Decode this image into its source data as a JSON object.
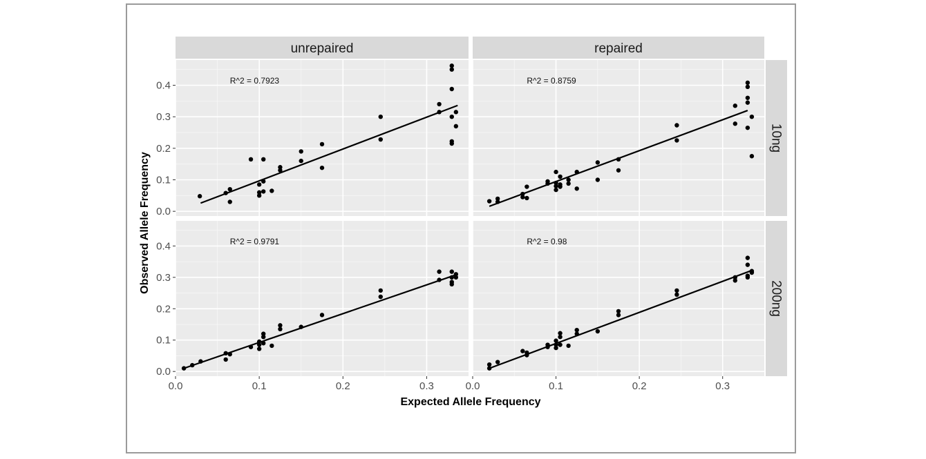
{
  "chart_data": {
    "type": "scatter",
    "xlabel": "Expected Allele Frequency",
    "ylabel": "Observed Allele Frequency",
    "xlim": [
      0.0,
      0.35
    ],
    "ylim": [
      -0.015,
      0.48
    ],
    "x_ticks": [
      "0.0",
      "0.1",
      "0.2",
      "0.3"
    ],
    "y_ticks": [
      "0.0",
      "0.1",
      "0.2",
      "0.3",
      "0.4"
    ],
    "column_labels": [
      "unrepaired",
      "repaired"
    ],
    "row_labels": [
      "10ng",
      "200ng"
    ],
    "grid": true,
    "panels": [
      {
        "column": "unrepaired",
        "row": "10ng",
        "annotation": "R^2 =  0.7923",
        "trend_line": [
          [
            0.03,
            0.026
          ],
          [
            0.337,
            0.336
          ]
        ],
        "points": [
          [
            0.029,
            0.048
          ],
          [
            0.06,
            0.058
          ],
          [
            0.065,
            0.07
          ],
          [
            0.065,
            0.03
          ],
          [
            0.09,
            0.165
          ],
          [
            0.1,
            0.085
          ],
          [
            0.1,
            0.06
          ],
          [
            0.1,
            0.05
          ],
          [
            0.105,
            0.095
          ],
          [
            0.105,
            0.063
          ],
          [
            0.105,
            0.165
          ],
          [
            0.115,
            0.065
          ],
          [
            0.125,
            0.14
          ],
          [
            0.125,
            0.13
          ],
          [
            0.15,
            0.19
          ],
          [
            0.15,
            0.16
          ],
          [
            0.175,
            0.213
          ],
          [
            0.175,
            0.138
          ],
          [
            0.245,
            0.3
          ],
          [
            0.245,
            0.228
          ],
          [
            0.315,
            0.34
          ],
          [
            0.315,
            0.315
          ],
          [
            0.33,
            0.462
          ],
          [
            0.33,
            0.45
          ],
          [
            0.33,
            0.388
          ],
          [
            0.33,
            0.3
          ],
          [
            0.33,
            0.222
          ],
          [
            0.33,
            0.215
          ],
          [
            0.335,
            0.315
          ],
          [
            0.335,
            0.27
          ]
        ]
      },
      {
        "column": "repaired",
        "row": "10ng",
        "annotation": "R^2 =  0.8759",
        "trend_line": [
          [
            0.02,
            0.016
          ],
          [
            0.33,
            0.32
          ]
        ],
        "points": [
          [
            0.02,
            0.032
          ],
          [
            0.03,
            0.04
          ],
          [
            0.03,
            0.03
          ],
          [
            0.06,
            0.055
          ],
          [
            0.06,
            0.045
          ],
          [
            0.065,
            0.078
          ],
          [
            0.065,
            0.042
          ],
          [
            0.09,
            0.095
          ],
          [
            0.09,
            0.088
          ],
          [
            0.1,
            0.125
          ],
          [
            0.1,
            0.09
          ],
          [
            0.1,
            0.08
          ],
          [
            0.1,
            0.068
          ],
          [
            0.105,
            0.11
          ],
          [
            0.105,
            0.085
          ],
          [
            0.105,
            0.078
          ],
          [
            0.115,
            0.1
          ],
          [
            0.115,
            0.088
          ],
          [
            0.125,
            0.125
          ],
          [
            0.125,
            0.072
          ],
          [
            0.15,
            0.155
          ],
          [
            0.15,
            0.1
          ],
          [
            0.175,
            0.165
          ],
          [
            0.175,
            0.13
          ],
          [
            0.245,
            0.273
          ],
          [
            0.245,
            0.225
          ],
          [
            0.315,
            0.335
          ],
          [
            0.315,
            0.278
          ],
          [
            0.33,
            0.408
          ],
          [
            0.33,
            0.395
          ],
          [
            0.33,
            0.36
          ],
          [
            0.33,
            0.345
          ],
          [
            0.33,
            0.265
          ],
          [
            0.335,
            0.3
          ],
          [
            0.335,
            0.175
          ]
        ]
      },
      {
        "column": "unrepaired",
        "row": "200ng",
        "annotation": "R^2 =  0.9791",
        "trend_line": [
          [
            0.01,
            0.01
          ],
          [
            0.337,
            0.31
          ]
        ],
        "points": [
          [
            0.01,
            0.01
          ],
          [
            0.02,
            0.02
          ],
          [
            0.03,
            0.032
          ],
          [
            0.06,
            0.058
          ],
          [
            0.06,
            0.038
          ],
          [
            0.065,
            0.055
          ],
          [
            0.09,
            0.078
          ],
          [
            0.1,
            0.095
          ],
          [
            0.1,
            0.085
          ],
          [
            0.1,
            0.072
          ],
          [
            0.105,
            0.12
          ],
          [
            0.105,
            0.11
          ],
          [
            0.105,
            0.09
          ],
          [
            0.115,
            0.082
          ],
          [
            0.125,
            0.147
          ],
          [
            0.125,
            0.135
          ],
          [
            0.15,
            0.142
          ],
          [
            0.175,
            0.18
          ],
          [
            0.245,
            0.258
          ],
          [
            0.245,
            0.238
          ],
          [
            0.315,
            0.318
          ],
          [
            0.315,
            0.292
          ],
          [
            0.33,
            0.318
          ],
          [
            0.33,
            0.3
          ],
          [
            0.33,
            0.285
          ],
          [
            0.33,
            0.278
          ],
          [
            0.335,
            0.31
          ],
          [
            0.335,
            0.3
          ]
        ]
      },
      {
        "column": "repaired",
        "row": "200ng",
        "annotation": "R^2 =  0.98",
        "trend_line": [
          [
            0.02,
            0.01
          ],
          [
            0.335,
            0.322
          ]
        ],
        "points": [
          [
            0.02,
            0.022
          ],
          [
            0.02,
            0.01
          ],
          [
            0.03,
            0.03
          ],
          [
            0.06,
            0.065
          ],
          [
            0.065,
            0.06
          ],
          [
            0.065,
            0.052
          ],
          [
            0.09,
            0.085
          ],
          [
            0.09,
            0.078
          ],
          [
            0.1,
            0.098
          ],
          [
            0.1,
            0.085
          ],
          [
            0.1,
            0.075
          ],
          [
            0.105,
            0.122
          ],
          [
            0.105,
            0.11
          ],
          [
            0.105,
            0.085
          ],
          [
            0.115,
            0.082
          ],
          [
            0.125,
            0.132
          ],
          [
            0.125,
            0.12
          ],
          [
            0.15,
            0.128
          ],
          [
            0.175,
            0.192
          ],
          [
            0.175,
            0.18
          ],
          [
            0.245,
            0.258
          ],
          [
            0.245,
            0.245
          ],
          [
            0.315,
            0.3
          ],
          [
            0.315,
            0.29
          ],
          [
            0.33,
            0.362
          ],
          [
            0.33,
            0.34
          ],
          [
            0.33,
            0.305
          ],
          [
            0.33,
            0.3
          ],
          [
            0.335,
            0.32
          ],
          [
            0.335,
            0.315
          ]
        ]
      }
    ]
  }
}
